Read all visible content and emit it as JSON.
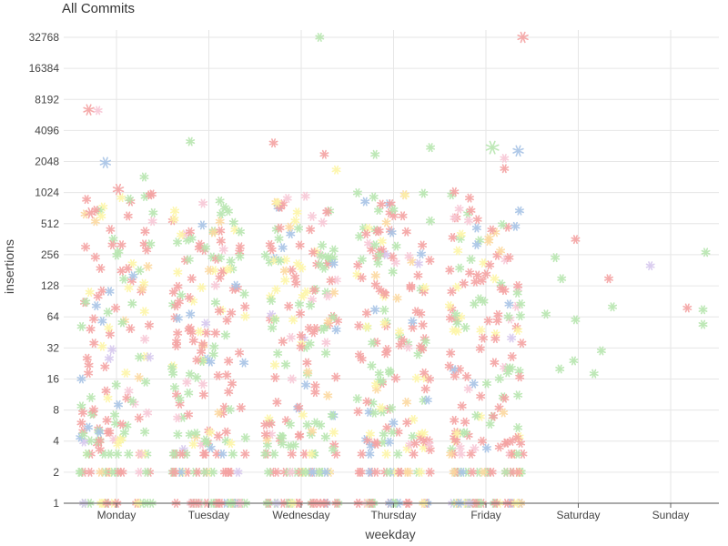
{
  "chart_data": {
    "type": "scatter",
    "title": "All Commits",
    "xlabel": "weekday",
    "ylabel": "insertions",
    "y_scale": "log2",
    "ylim": [
      1,
      32768
    ],
    "y_ticks": [
      "1",
      "2",
      "4",
      "8",
      "16",
      "32",
      "64",
      "128",
      "256",
      "512",
      "1024",
      "2048",
      "4096",
      "8192",
      "16384",
      "32768"
    ],
    "categories": [
      "Monday",
      "Tuesday",
      "Wednesday",
      "Thursday",
      "Friday",
      "Saturday",
      "Sunday"
    ],
    "grid": true,
    "marker": "asterisk",
    "colors": [
      "#f4a3a3",
      "#b8e6b0",
      "#fdf6a8",
      "#a8c4e6",
      "#f8c8d6",
      "#fcd9a0",
      "#d6c8ee"
    ],
    "points": [
      {
        "day": "Monday",
        "offset": -0.3,
        "y": 6500,
        "size": 1.3,
        "color": "#f4a3a3"
      },
      {
        "day": "Monday",
        "offset": -0.2,
        "y": 6400,
        "size": 1.0,
        "color": "#f8c8d6"
      },
      {
        "day": "Monday",
        "offset": -0.12,
        "y": 2000,
        "size": 1.3,
        "color": "#a8c4e6"
      },
      {
        "day": "Monday",
        "offset": 0.02,
        "y": 1100,
        "size": 1.3,
        "color": "#f4a3a3"
      },
      {
        "day": "Monday",
        "offset": -0.28,
        "y": 650,
        "size": 1.3,
        "color": "#f4a3a3"
      },
      {
        "day": "Monday",
        "offset": 0.3,
        "y": 1450,
        "size": 1.0,
        "color": "#b8e6b0"
      },
      {
        "day": "Monday",
        "offset": 0.25,
        "y": 180,
        "size": 1.0,
        "color": "#b8e6b0"
      },
      {
        "day": "Monday",
        "offset": 0.18,
        "y": 160,
        "size": 1.0,
        "color": "#a8c4e6"
      },
      {
        "day": "Monday",
        "offset": -0.38,
        "y": 16,
        "size": 1.0,
        "color": "#a8c4e6"
      },
      {
        "day": "Monday",
        "offset": 0.02,
        "y": 9,
        "size": 1.0,
        "color": "#a8c4e6"
      },
      {
        "day": "Monday",
        "offset": -0.38,
        "y": 6,
        "size": 1.0,
        "color": "#f4a3a3"
      },
      {
        "day": "Tuesday",
        "offset": -0.2,
        "y": 3200,
        "size": 1.0,
        "color": "#b8e6b0"
      },
      {
        "day": "Tuesday",
        "offset": 0.12,
        "y": 850,
        "size": 1.0,
        "color": "#b8e6b0"
      },
      {
        "day": "Tuesday",
        "offset": 0.05,
        "y": 420,
        "size": 1.0,
        "color": "#fcd9a0"
      },
      {
        "day": "Tuesday",
        "offset": -0.2,
        "y": 68,
        "size": 1.0,
        "color": "#a8c4e6"
      },
      {
        "day": "Tuesday",
        "offset": 0.38,
        "y": 23,
        "size": 1.0,
        "color": "#a8c4e6"
      },
      {
        "day": "Wednesday",
        "offset": -0.3,
        "y": 3100,
        "size": 1.0,
        "color": "#f4a3a3"
      },
      {
        "day": "Wednesday",
        "offset": 0.2,
        "y": 32768,
        "size": 1.0,
        "color": "#b8e6b0"
      },
      {
        "day": "Wednesday",
        "offset": 0.25,
        "y": 2400,
        "size": 1.0,
        "color": "#f4a3a3"
      },
      {
        "day": "Wednesday",
        "offset": 0.38,
        "y": 1700,
        "size": 1.0,
        "color": "#fdf6a8"
      },
      {
        "day": "Wednesday",
        "offset": -0.15,
        "y": 900,
        "size": 1.0,
        "color": "#f8c8d6"
      },
      {
        "day": "Wednesday",
        "offset": -0.2,
        "y": 300,
        "size": 1.0,
        "color": "#a8c4e6"
      },
      {
        "day": "Wednesday",
        "offset": 0.35,
        "y": 210,
        "size": 1.0,
        "color": "#a8c4e6"
      },
      {
        "day": "Wednesday",
        "offset": 0.38,
        "y": 48,
        "size": 1.0,
        "color": "#a8c4e6"
      },
      {
        "day": "Wednesday",
        "offset": 0.05,
        "y": 14,
        "size": 1.0,
        "color": "#a8c4e6"
      },
      {
        "day": "Wednesday",
        "offset": 0.27,
        "y": 2,
        "size": 1.0,
        "color": "#a8c4e6"
      },
      {
        "day": "Thursday",
        "offset": -0.2,
        "y": 2400,
        "size": 1.0,
        "color": "#b8e6b0"
      },
      {
        "day": "Thursday",
        "offset": 0.4,
        "y": 2800,
        "size": 1.0,
        "color": "#b8e6b0"
      },
      {
        "day": "Thursday",
        "offset": 0.0,
        "y": 700,
        "size": 1.0,
        "color": "#b8e6b0"
      },
      {
        "day": "Thursday",
        "offset": 0.3,
        "y": 260,
        "size": 1.0,
        "color": "#a8c4e6"
      },
      {
        "day": "Thursday",
        "offset": -0.2,
        "y": 75,
        "size": 1.0,
        "color": "#a8c4e6"
      },
      {
        "day": "Friday",
        "offset": 0.4,
        "y": 32768,
        "size": 1.3,
        "color": "#f4a3a3"
      },
      {
        "day": "Friday",
        "offset": 0.07,
        "y": 2800,
        "size": 1.6,
        "color": "#b8e6b0"
      },
      {
        "day": "Friday",
        "offset": 0.35,
        "y": 2600,
        "size": 1.3,
        "color": "#a8c4e6"
      },
      {
        "day": "Friday",
        "offset": 0.2,
        "y": 1750,
        "size": 1.0,
        "color": "#f4a3a3"
      },
      {
        "day": "Friday",
        "offset": 0.2,
        "y": 2200,
        "size": 1.0,
        "color": "#f8c8d6"
      },
      {
        "day": "Friday",
        "offset": -0.1,
        "y": 320,
        "size": 1.0,
        "color": "#a8c4e6"
      },
      {
        "day": "Friday",
        "offset": 0.25,
        "y": 85,
        "size": 1.0,
        "color": "#a8c4e6"
      },
      {
        "day": "Saturday",
        "offset": -0.25,
        "y": 240,
        "size": 1.0,
        "color": "#b8e6b0"
      },
      {
        "day": "Saturday",
        "offset": -0.18,
        "y": 150,
        "size": 1.0,
        "color": "#b8e6b0"
      },
      {
        "day": "Saturday",
        "offset": -0.03,
        "y": 360,
        "size": 1.0,
        "color": "#f4a3a3"
      },
      {
        "day": "Saturday",
        "offset": -0.35,
        "y": 68,
        "size": 1.0,
        "color": "#b8e6b0"
      },
      {
        "day": "Saturday",
        "offset": -0.03,
        "y": 60,
        "size": 1.0,
        "color": "#b8e6b0"
      },
      {
        "day": "Saturday",
        "offset": 0.33,
        "y": 150,
        "size": 1.0,
        "color": "#f4a3a3"
      },
      {
        "day": "Saturday",
        "offset": 0.37,
        "y": 80,
        "size": 1.0,
        "color": "#b8e6b0"
      },
      {
        "day": "Saturday",
        "offset": 0.25,
        "y": 30,
        "size": 1.0,
        "color": "#b8e6b0"
      },
      {
        "day": "Saturday",
        "offset": -0.2,
        "y": 20,
        "size": 1.0,
        "color": "#b8e6b0"
      },
      {
        "day": "Saturday",
        "offset": -0.05,
        "y": 24,
        "size": 1.0,
        "color": "#b8e6b0"
      },
      {
        "day": "Saturday",
        "offset": 0.17,
        "y": 18,
        "size": 1.0,
        "color": "#b8e6b0"
      },
      {
        "day": "Sunday",
        "offset": -0.22,
        "y": 200,
        "size": 1.0,
        "color": "#d6c8ee"
      },
      {
        "day": "Sunday",
        "offset": 0.38,
        "y": 270,
        "size": 1.0,
        "color": "#b8e6b0"
      },
      {
        "day": "Sunday",
        "offset": 0.18,
        "y": 78,
        "size": 1.0,
        "color": "#f4a3a3"
      },
      {
        "day": "Sunday",
        "offset": 0.35,
        "y": 75,
        "size": 1.0,
        "color": "#b8e6b0"
      },
      {
        "day": "Sunday",
        "offset": 0.35,
        "y": 54,
        "size": 1.0,
        "color": "#b8e6b0"
      }
    ],
    "generated_clusters": [
      {
        "day": "Monday",
        "count": 160,
        "seed": 11,
        "offset_range": [
          -0.4,
          0.4
        ]
      },
      {
        "day": "Tuesday",
        "count": 190,
        "seed": 23,
        "offset_range": [
          -0.4,
          0.4
        ]
      },
      {
        "day": "Wednesday",
        "count": 190,
        "seed": 37,
        "offset_range": [
          -0.4,
          0.4
        ]
      },
      {
        "day": "Thursday",
        "count": 190,
        "seed": 51,
        "offset_range": [
          -0.4,
          0.4
        ]
      },
      {
        "day": "Friday",
        "count": 190,
        "seed": 67,
        "offset_range": [
          -0.4,
          0.4
        ]
      }
    ]
  }
}
